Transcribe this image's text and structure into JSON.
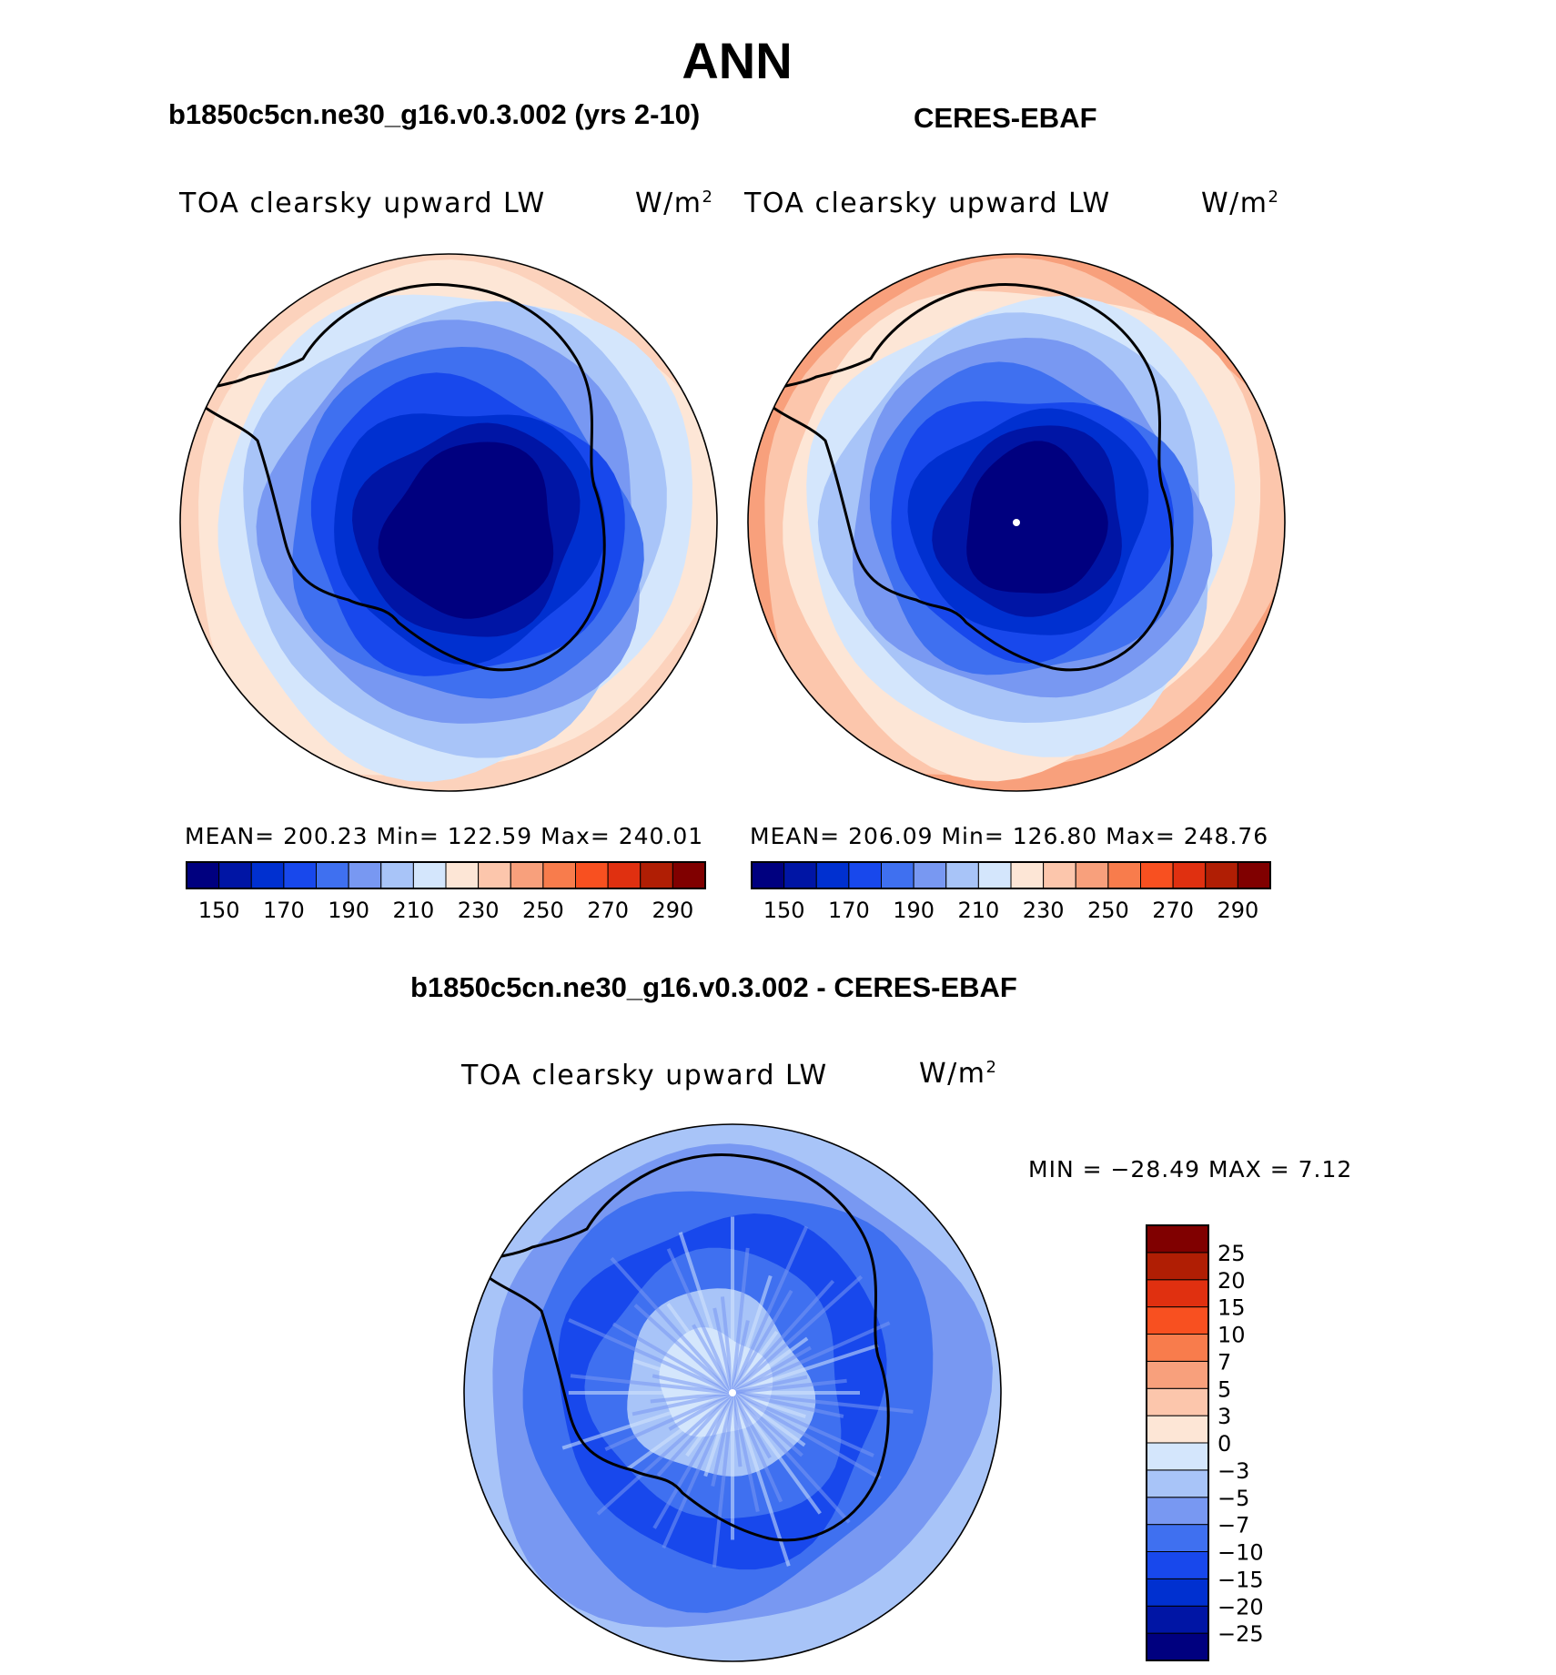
{
  "figure": {
    "title": "ANN"
  },
  "panels": [
    {
      "title": "b1850c5cn.ne30_g16.v0.3.002 (yrs 2-10)",
      "field": "TOA clearsky upward LW",
      "units_base": "W/m",
      "units_exp": "2",
      "stats": "MEAN= 200.23   Min= 122.59   Max= 240.01"
    },
    {
      "title": "CERES-EBAF",
      "field": "TOA clearsky upward LW",
      "units_base": "W/m",
      "units_exp": "2",
      "stats": "MEAN= 206.09   Min= 126.80   Max= 248.76"
    },
    {
      "title": "b1850c5cn.ne30_g16.v0.3.002 - CERES-EBAF",
      "field": "TOA clearsky upward LW",
      "units_base": "W/m",
      "units_exp": "2",
      "stats": "MIN = −28.49 MAX =    7.12"
    }
  ],
  "colorbars": {
    "absolute": {
      "colors": [
        "#00007f",
        "#0015a5",
        "#0030d0",
        "#1848ec",
        "#3f70f0",
        "#7898f2",
        "#a8c4f8",
        "#d4e6fc",
        "#fde6d6",
        "#fcc6ac",
        "#f8a07c",
        "#f87c4c",
        "#f85020",
        "#e03010",
        "#b01e04",
        "#800000"
      ],
      "labels": [
        "150",
        "170",
        "190",
        "210",
        "230",
        "250",
        "270",
        "290"
      ]
    },
    "difference": {
      "colors": [
        "#00007f",
        "#0015a5",
        "#0030d0",
        "#1848ec",
        "#3f70f0",
        "#7898f2",
        "#a8c4f8",
        "#d4e6fc",
        "#fde6d6",
        "#fcc6ac",
        "#f8a07c",
        "#f87c4c",
        "#f85020",
        "#e03010",
        "#b01e04",
        "#800000"
      ],
      "labels": [
        "−25",
        "−20",
        "−15",
        "−10",
        "−7",
        "−5",
        "−3",
        "0",
        "3",
        "5",
        "7",
        "10",
        "15",
        "20",
        "25"
      ]
    }
  },
  "maps": {
    "model": {
      "rings": [
        "#fcd2bc",
        "#fde6d6",
        "#d4e6fc",
        "#a8c4f8",
        "#7898f2",
        "#3f70f0",
        "#1848ec",
        "#0030d0",
        "#0015a5",
        "#00007f"
      ]
    },
    "obs": {
      "rings": [
        "#f8a07c",
        "#fcc6ac",
        "#fde6d6",
        "#d4e6fc",
        "#a8c4f8",
        "#7898f2",
        "#3f70f0",
        "#1848ec",
        "#0030d0",
        "#0015a5",
        "#00007f"
      ]
    },
    "diff": {
      "rings": [
        "#a8c4f8",
        "#7898f2",
        "#3f70f0",
        "#1848ec",
        "#3f70f0",
        "#a8c4f8",
        "#d4e6fc"
      ]
    }
  }
}
